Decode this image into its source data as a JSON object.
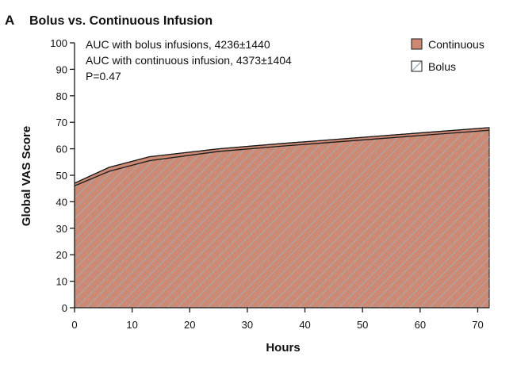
{
  "panel": {
    "letter": "A",
    "title": "Bolus vs. Continuous Infusion"
  },
  "annotations": [
    "AUC with bolus infusions, 4236±1440",
    "AUC with continuous infusion, 4373±1404",
    "P=0.47"
  ],
  "colors": {
    "continuous_fill": "#cc8a74",
    "bolus_hatch": "#9bb3c4",
    "line": "#1a1a1a"
  },
  "chart_data": {
    "type": "area",
    "title": "Bolus vs. Continuous Infusion",
    "xlabel": "Hours",
    "ylabel": "Global VAS Score",
    "xlim": [
      0,
      72
    ],
    "ylim": [
      0,
      100
    ],
    "xticks": [
      0,
      10,
      20,
      30,
      40,
      50,
      60,
      70
    ],
    "yticks": [
      0,
      10,
      20,
      30,
      40,
      50,
      60,
      70,
      80,
      90,
      100
    ],
    "grid": false,
    "legend_position": "top-right",
    "series": [
      {
        "name": "Continuous",
        "style": "solid",
        "x": [
          0,
          6,
          13,
          25,
          36,
          48,
          60,
          72
        ],
        "y": [
          47,
          53,
          57,
          60,
          62,
          64,
          66,
          68
        ]
      },
      {
        "name": "Bolus",
        "style": "hatched",
        "x": [
          0,
          6,
          13,
          25,
          36,
          48,
          60,
          72
        ],
        "y": [
          46,
          51.5,
          55.5,
          59,
          61,
          63,
          65,
          67
        ]
      }
    ]
  }
}
